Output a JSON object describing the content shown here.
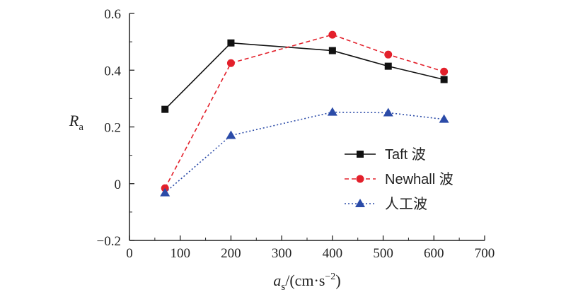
{
  "chart_data": {
    "type": "line",
    "x": [
      70,
      200,
      400,
      510,
      620
    ],
    "series": [
      {
        "name": "Taft 波",
        "values": [
          0.262,
          0.496,
          0.469,
          0.414,
          0.367
        ],
        "color": "#111111",
        "dash": "solid",
        "marker": "square"
      },
      {
        "name": "Newhall 波",
        "values": [
          -0.016,
          0.425,
          0.525,
          0.455,
          0.395
        ],
        "color": "#e3202b",
        "dash": "dashed",
        "marker": "circle"
      },
      {
        "name": "人工波",
        "values": [
          -0.032,
          0.17,
          0.252,
          0.25,
          0.227
        ],
        "color": "#2b4ba8",
        "dash": "dotted",
        "marker": "triangle"
      }
    ],
    "xlim": [
      0,
      700
    ],
    "ylim": [
      -0.2,
      0.6
    ],
    "xticks": [
      "0",
      "100",
      "200",
      "300",
      "400",
      "500",
      "600",
      "700"
    ],
    "yticks": [
      "−0.2",
      "0",
      "0.2",
      "0.4",
      "0.6"
    ],
    "xlabel": {
      "main": "a",
      "sub": "s",
      "unit": "/(cm·s",
      "sup": "−2",
      "close": ")"
    },
    "ylabel": {
      "main": "R",
      "sub": "a"
    },
    "legend_position": "lower-right",
    "grid": false
  }
}
